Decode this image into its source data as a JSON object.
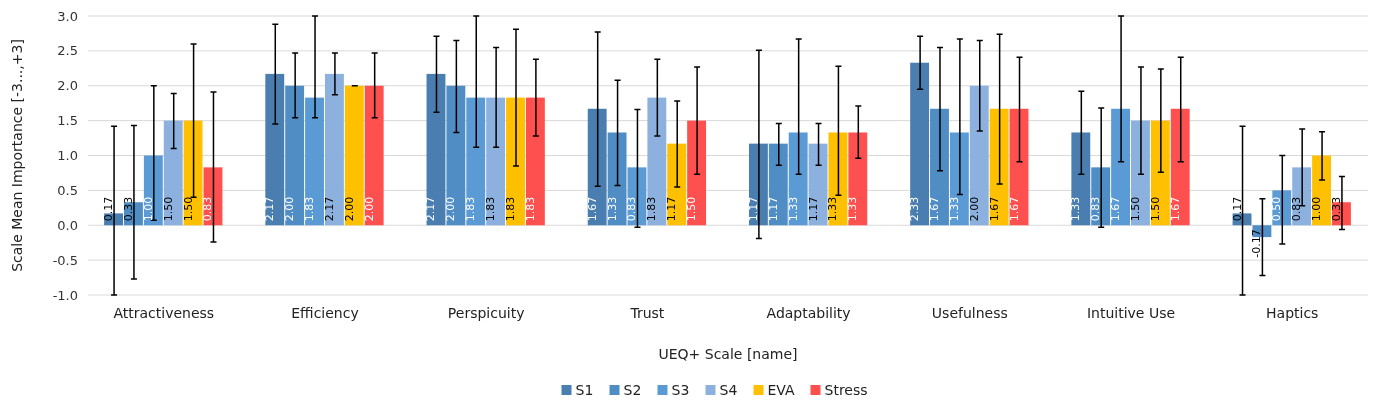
{
  "chart_data": {
    "type": "bar",
    "xlabel": "UEQ+ Scale [name]",
    "ylabel": "Scale Mean Importance [-3...,+3]",
    "categories": [
      "Attractiveness",
      "Efficiency",
      "Perspicuity",
      "Trust",
      "Adaptability",
      "Usefulness",
      "Intuitive Use",
      "Haptics"
    ],
    "series": [
      {
        "name": "S1",
        "color": "#4a7eb0",
        "values": [
          0.17,
          2.17,
          2.17,
          1.67,
          1.17,
          2.33,
          1.33,
          0.17
        ],
        "errors": [
          [
            -1.0,
            1.42
          ],
          [
            1.45,
            2.88
          ],
          [
            1.62,
            2.71
          ],
          [
            0.56,
            2.77
          ],
          [
            -0.19,
            2.51
          ],
          [
            1.95,
            2.71
          ],
          [
            0.73,
            1.92
          ],
          [
            -1.0,
            1.42
          ]
        ]
      },
      {
        "name": "S2",
        "color": "#508dc5",
        "values": [
          0.33,
          2.0,
          2.0,
          1.33,
          1.17,
          1.67,
          0.83,
          -0.17
        ],
        "errors": [
          [
            -0.77,
            1.43
          ],
          [
            1.54,
            2.47
          ],
          [
            1.33,
            2.65
          ],
          [
            0.57,
            2.08
          ],
          [
            0.86,
            1.46
          ],
          [
            0.78,
            2.55
          ],
          [
            -0.03,
            1.68
          ],
          [
            -0.72,
            0.38
          ]
        ]
      },
      {
        "name": "S3",
        "color": "#5b9bd5",
        "values": [
          1.0,
          1.83,
          1.83,
          0.83,
          1.33,
          1.33,
          1.67,
          0.5
        ],
        "errors": [
          [
            0.07,
            2.0
          ],
          [
            1.54,
            3.0
          ],
          [
            1.12,
            3.0
          ],
          [
            -0.03,
            1.66
          ],
          [
            0.73,
            2.67
          ],
          [
            0.44,
            2.67
          ],
          [
            0.91,
            3.0
          ],
          [
            -0.27,
            1.0
          ]
        ]
      },
      {
        "name": "S4",
        "color": "#8cb1de",
        "values": [
          1.5,
          2.17,
          1.83,
          1.83,
          1.17,
          2.0,
          1.5,
          0.83
        ],
        "errors": [
          [
            1.1,
            1.89
          ],
          [
            1.87,
            2.47
          ],
          [
            1.12,
            2.55
          ],
          [
            1.28,
            2.38
          ],
          [
            0.86,
            1.46
          ],
          [
            1.35,
            2.65
          ],
          [
            0.73,
            2.27
          ],
          [
            0.28,
            1.38
          ]
        ]
      },
      {
        "name": "EVA",
        "color": "#ffc000",
        "values": [
          1.5,
          2.0,
          1.83,
          1.17,
          1.33,
          1.67,
          1.5,
          1.0
        ],
        "errors": [
          [
            0.4,
            2.6
          ],
          [
            2.0,
            2.0
          ],
          [
            0.85,
            2.81
          ],
          [
            0.55,
            1.78
          ],
          [
            0.43,
            2.28
          ],
          [
            0.59,
            2.74
          ],
          [
            0.76,
            2.24
          ],
          [
            0.65,
            1.34
          ]
        ]
      },
      {
        "name": "Stress",
        "color": "#ff5050",
        "values": [
          0.83,
          2.0,
          1.83,
          1.5,
          1.33,
          1.67,
          1.67,
          0.33
        ],
        "errors": [
          [
            -0.24,
            1.91
          ],
          [
            1.54,
            2.47
          ],
          [
            1.28,
            2.38
          ],
          [
            0.73,
            2.27
          ],
          [
            0.96,
            1.71
          ],
          [
            0.91,
            2.41
          ],
          [
            0.91,
            2.41
          ],
          [
            -0.06,
            0.7
          ]
        ]
      }
    ],
    "value_labels": [
      [
        "0.17",
        "2.17",
        "2.17",
        "1.67",
        "1.17",
        "2.33",
        "1.33",
        "0.17"
      ],
      [
        "0.33",
        "2.00",
        "2.00",
        "1.33",
        "1.17",
        "1.67",
        "0.83",
        "-0.17"
      ],
      [
        "1.00",
        "1.83",
        "1.83",
        "0.83",
        "1.33",
        "1.33",
        "1.67",
        "0.50"
      ],
      [
        "1.50",
        "2.17",
        "1.83",
        "1.83",
        "1.17",
        "2.00",
        "1.50",
        "0.83"
      ],
      [
        "1.50",
        "2.00",
        "1.83",
        "1.17",
        "1.33",
        "1.67",
        "1.50",
        "1.00"
      ],
      [
        "0.83",
        "2.00",
        "1.83",
        "1.50",
        "1.33",
        "1.67",
        "1.67",
        "0.33"
      ]
    ],
    "ylim": [
      -1.0,
      3.0
    ],
    "yticks": [
      {
        "value": -1,
        "label": "-1.0"
      },
      -0.5,
      {
        "value": 0,
        "label": "0.0"
      },
      0.5,
      {
        "value": 1,
        "label": "1.0"
      },
      1.5,
      {
        "value": 2,
        "label": "2.0"
      },
      2.5,
      {
        "value": 3,
        "label": "3.0"
      }
    ],
    "grid": "y",
    "legend": "bottom"
  }
}
